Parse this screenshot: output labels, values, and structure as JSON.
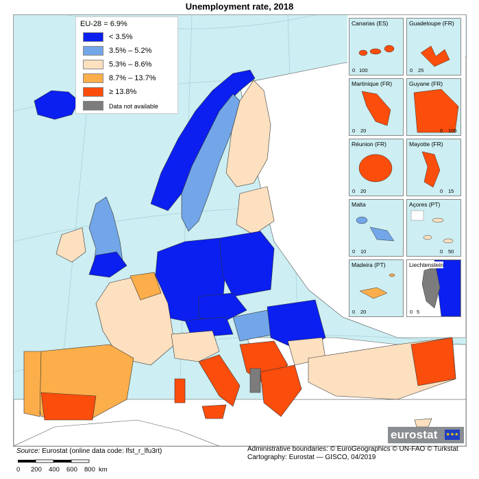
{
  "title": "Unemployment rate, 2018",
  "legend": {
    "header": "EU-28 = 6.9%",
    "items": [
      {
        "label": "< 3.5%",
        "color": "#0a1ff0"
      },
      {
        "label": "3.5% – 5.2%",
        "color": "#72a6e8"
      },
      {
        "label": "5.3% – 8.6%",
        "color": "#fde0c0"
      },
      {
        "label": "8.7% – 13.7%",
        "color": "#fbae4a"
      },
      {
        "label": "≥ 13.8%",
        "color": "#fb4d0c"
      },
      {
        "label": "Data not available",
        "color": "#7c7c7c"
      }
    ]
  },
  "insets": [
    {
      "name": "Canarias (ES)",
      "scale": [
        "0",
        "100"
      ]
    },
    {
      "name": "Guadeloupe (FR)",
      "scale": [
        "0",
        "25"
      ]
    },
    {
      "name": "Martinique (FR)",
      "scale": [
        "0",
        "20"
      ]
    },
    {
      "name": "Guyane (FR)",
      "scale": [
        "0",
        "100"
      ]
    },
    {
      "name": "Réunion (FR)",
      "scale": [
        "0",
        "20"
      ]
    },
    {
      "name": "Mayotte (FR)",
      "scale": [
        "0",
        "15"
      ]
    },
    {
      "name": "Malta",
      "scale": [
        "0",
        "10"
      ]
    },
    {
      "name": "Açores (PT)",
      "scale": [
        "0",
        "50"
      ]
    },
    {
      "name": "Madeira (PT)",
      "scale": [
        "0",
        "20"
      ]
    },
    {
      "name": "Liechtenstein",
      "scale": [
        "0",
        "5"
      ]
    }
  ],
  "logo": {
    "text": "eurostat"
  },
  "source": {
    "label": "Source:",
    "text": "Eurostat (online data code: lfst_r_lfu3rt)"
  },
  "credits": {
    "line1": "Administrative boundaries: © EuroGeographics © UN-FAO © Turkstat",
    "line2": "Cartography: Eurostat — GISCO, 04/2019"
  },
  "scalebar": {
    "ticks": [
      "0",
      "200",
      "400",
      "600",
      "800"
    ],
    "unit": "km"
  },
  "colors": {
    "sea": "#cdeef2",
    "non_eu_land": "#ffffff",
    "border": "#333333"
  }
}
